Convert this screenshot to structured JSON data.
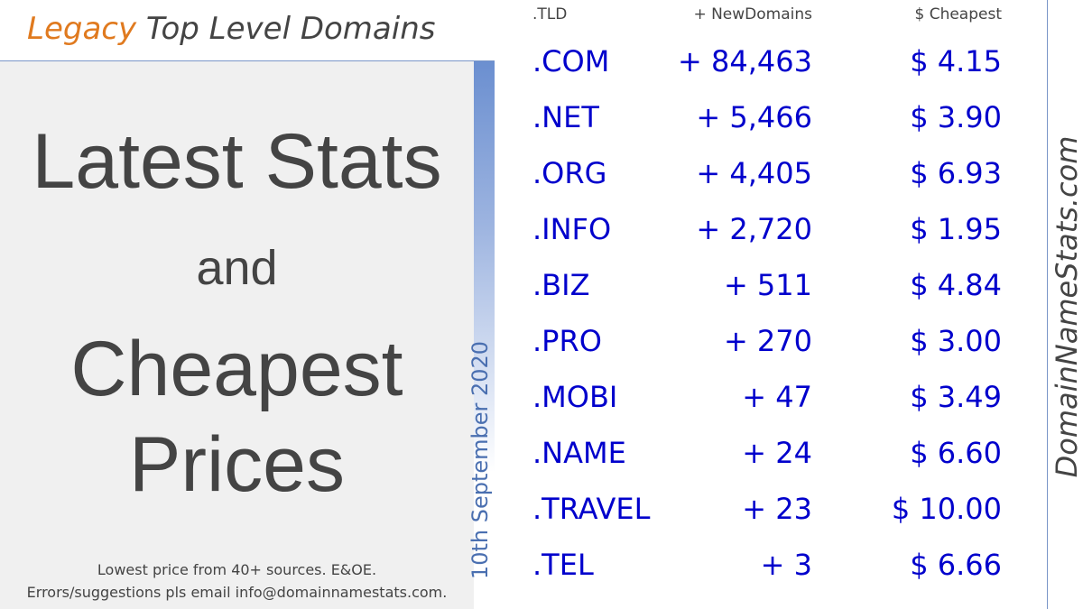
{
  "header": {
    "title_highlight": "Legacy",
    "title_rest": "Top Level Domains"
  },
  "headline": {
    "lines": [
      "Latest Stats",
      "and",
      "Cheapest",
      "Prices"
    ]
  },
  "footnote": [
    "Lowest price from 40+ sources. E&OE.",
    "Errors/suggestions pls email info@domainnamestats.com."
  ],
  "date": "10th September 2020",
  "site": "DomainNameStats.com",
  "table": {
    "columns": [
      ".TLD",
      "+ NewDomains",
      "$ Cheapest"
    ],
    "rows": [
      [
        ".COM",
        "+ 84,463",
        "$ 4.15"
      ],
      [
        ".NET",
        "+ 5,466",
        "$ 3.90"
      ],
      [
        ".ORG",
        "+ 4,405",
        "$ 6.93"
      ],
      [
        ".INFO",
        "+ 2,720",
        "$ 1.95"
      ],
      [
        ".BIZ",
        "+ 511",
        "$ 4.84"
      ],
      [
        ".PRO",
        "+ 270",
        "$ 3.00"
      ],
      [
        ".MOBI",
        "+ 47",
        "$ 3.49"
      ],
      [
        ".NAME",
        "+ 24",
        "$ 6.60"
      ],
      [
        ".TRAVEL",
        "+ 23",
        "$ 10.00"
      ],
      [
        ".TEL",
        "+ 3",
        "$ 6.66"
      ]
    ]
  }
}
